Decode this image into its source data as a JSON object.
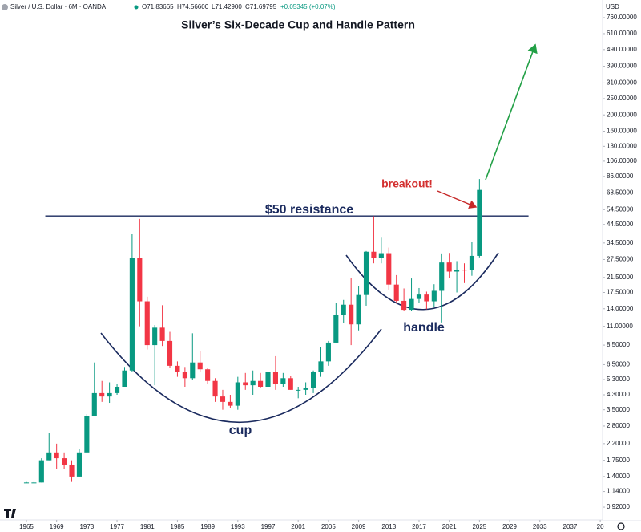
{
  "chart_data": {
    "type": "candlestick",
    "header": {
      "symbol": "Silver / U.S. Dollar · 6M · OANDA",
      "open": "O71.83665",
      "high": "H74.56600",
      "low": "L71.42900",
      "close": "C71.69795",
      "change": "+0.05345 (+0.07%)",
      "currency": "USD"
    },
    "title": "Silver’s Six-Decade Cup and Handle Pattern",
    "annotations": {
      "resistance": "$50 resistance",
      "breakout": "breakout!",
      "cup": "cup",
      "handle": "handle"
    },
    "resistance_level": 50,
    "up_color": "#089981",
    "down_color": "#f23645",
    "log_scale": true,
    "x": [
      1965,
      1966,
      1967,
      1968,
      1969,
      1970,
      1971,
      1972,
      1973,
      1974,
      1975,
      1976,
      1977,
      1978,
      1979,
      1980,
      1981,
      1982,
      1983,
      1984,
      1985,
      1986,
      1987,
      1988,
      1989,
      1990,
      1991,
      1992,
      1993,
      1994,
      1995,
      1996,
      1997,
      1998,
      1999,
      2000,
      2001,
      2002,
      2003,
      2004,
      2005,
      2006,
      2007,
      2008,
      2009,
      2010,
      2011,
      2012,
      2013,
      2014,
      2015,
      2016,
      2017,
      2018,
      2019,
      2020,
      2021,
      2022,
      2023,
      2024,
      2025
    ],
    "open": [
      1.29,
      1.29,
      1.29,
      1.75,
      1.95,
      1.8,
      1.65,
      1.4,
      1.95,
      3.2,
      4.4,
      4.2,
      4.4,
      4.8,
      6.0,
      28,
      15.5,
      8.5,
      10.8,
      9.0,
      6.4,
      5.9,
      5.4,
      6.7,
      6.1,
      5.2,
      4.2,
      3.9,
      3.7,
      5.1,
      4.9,
      5.2,
      4.8,
      5.9,
      5.0,
      5.4,
      4.6,
      4.6,
      4.7,
      5.9,
      6.8,
      8.8,
      12.9,
      14.8,
      11.3,
      16.9,
      30.6,
      28.2,
      30.0,
      19.5,
      15.6,
      13.8,
      16.0,
      17.0,
      15.5,
      17.9,
      26.4,
      23.3,
      23.9,
      23.8,
      28.9
    ],
    "high": [
      1.3,
      1.3,
      1.8,
      2.55,
      2.2,
      1.95,
      1.75,
      2.05,
      3.3,
      6.7,
      5.2,
      5.1,
      5.0,
      6.3,
      39,
      48,
      16.5,
      11.2,
      14.7,
      10.2,
      6.8,
      6.3,
      10.0,
      7.8,
      6.2,
      5.4,
      4.6,
      4.3,
      5.5,
      5.8,
      6.0,
      5.8,
      6.3,
      7.3,
      5.8,
      5.6,
      4.8,
      5.1,
      6.0,
      8.3,
      9.0,
      15.2,
      15.8,
      21.4,
      19.2,
      30.9,
      49.8,
      37.5,
      32.4,
      22.2,
      18.5,
      21.2,
      18.6,
      17.7,
      19.6,
      29.9,
      30.1,
      26.9,
      26.1,
      35.0,
      83
    ],
    "low": [
      1.28,
      1.28,
      1.29,
      1.75,
      1.55,
      1.55,
      1.3,
      1.4,
      1.95,
      3.2,
      3.9,
      3.85,
      4.3,
      4.8,
      5.9,
      11,
      8,
      4.9,
      8.4,
      6.2,
      5.5,
      4.8,
      5.3,
      5.9,
      5.0,
      3.9,
      3.5,
      3.6,
      3.5,
      4.6,
      4.3,
      4.7,
      4.2,
      4.6,
      4.8,
      4.6,
      4.1,
      4.3,
      4.4,
      5.5,
      6.4,
      8.8,
      11.5,
      8.5,
      10.4,
      14.6,
      26.1,
      26.1,
      18.2,
      15.3,
      13.6,
      13.6,
      15.2,
      13.9,
      14.3,
      11.6,
      21.4,
      17.5,
      19.9,
      22.0,
      28.3
    ],
    "close": [
      1.29,
      1.29,
      1.75,
      1.95,
      1.8,
      1.65,
      1.4,
      1.95,
      3.2,
      4.4,
      4.2,
      4.4,
      4.8,
      6.0,
      28,
      15.5,
      8.5,
      10.8,
      9.0,
      6.4,
      5.9,
      5.4,
      6.7,
      6.1,
      5.2,
      4.2,
      3.9,
      3.7,
      5.1,
      4.9,
      5.2,
      4.8,
      5.9,
      5.0,
      5.4,
      4.6,
      4.6,
      4.7,
      5.9,
      6.8,
      8.8,
      12.9,
      14.8,
      11.3,
      16.9,
      30.6,
      28.2,
      30.0,
      19.5,
      15.6,
      13.8,
      16.0,
      17.0,
      15.5,
      17.9,
      26.4,
      23.3,
      23.9,
      23.8,
      28.9,
      71.5
    ],
    "xlim": [
      1961.5,
      2046.4
    ],
    "xticks": [
      1965,
      1969,
      1973,
      1977,
      1981,
      1985,
      1989,
      1993,
      1997,
      2001,
      2005,
      2009,
      2013,
      2017,
      2021,
      2025,
      2029,
      2033,
      2037,
      {
        "value": 2041,
        "label": "20"
      }
    ],
    "ylim": [
      0.755,
      968
    ],
    "yticks": [
      {
        "value": 760,
        "label": "760.00000"
      },
      {
        "value": 610,
        "label": "610.00000"
      },
      {
        "value": 490,
        "label": "490.00000"
      },
      {
        "value": 390,
        "label": "390.00000"
      },
      {
        "value": 310,
        "label": "310.00000"
      },
      {
        "value": 250,
        "label": "250.00000"
      },
      {
        "value": 200,
        "label": "200.00000"
      },
      {
        "value": 160,
        "label": "160.00000"
      },
      {
        "value": 130,
        "label": "130.00000"
      },
      {
        "value": 106,
        "label": "106.00000"
      },
      {
        "value": 86,
        "label": "86.00000"
      },
      {
        "value": 68.5,
        "label": "68.50000"
      },
      {
        "value": 54.5,
        "label": "54.50000"
      },
      {
        "value": 44.5,
        "label": "44.50000"
      },
      {
        "value": 34.5,
        "label": "34.50000"
      },
      {
        "value": 27.5,
        "label": "27.50000"
      },
      {
        "value": 21.5,
        "label": "21.50000"
      },
      {
        "value": 17.5,
        "label": "17.50000"
      },
      {
        "value": 14,
        "label": "14.00000"
      },
      {
        "value": 11,
        "label": "11.00000"
      },
      {
        "value": 8.5,
        "label": "8.50000"
      },
      {
        "value": 6.5,
        "label": "6.50000"
      },
      {
        "value": 5.3,
        "label": "5.30000"
      },
      {
        "value": 4.3,
        "label": "4.30000"
      },
      {
        "value": 3.5,
        "label": "3.50000"
      },
      {
        "value": 2.8,
        "label": "2.80000"
      },
      {
        "value": 2.2,
        "label": "2.20000"
      },
      {
        "value": 1.75,
        "label": "1.75000"
      },
      {
        "value": 1.4,
        "label": "1.40000"
      },
      {
        "value": 1.14,
        "label": "1.14000"
      },
      {
        "value": 0.92,
        "label": "0.92000"
      }
    ]
  }
}
